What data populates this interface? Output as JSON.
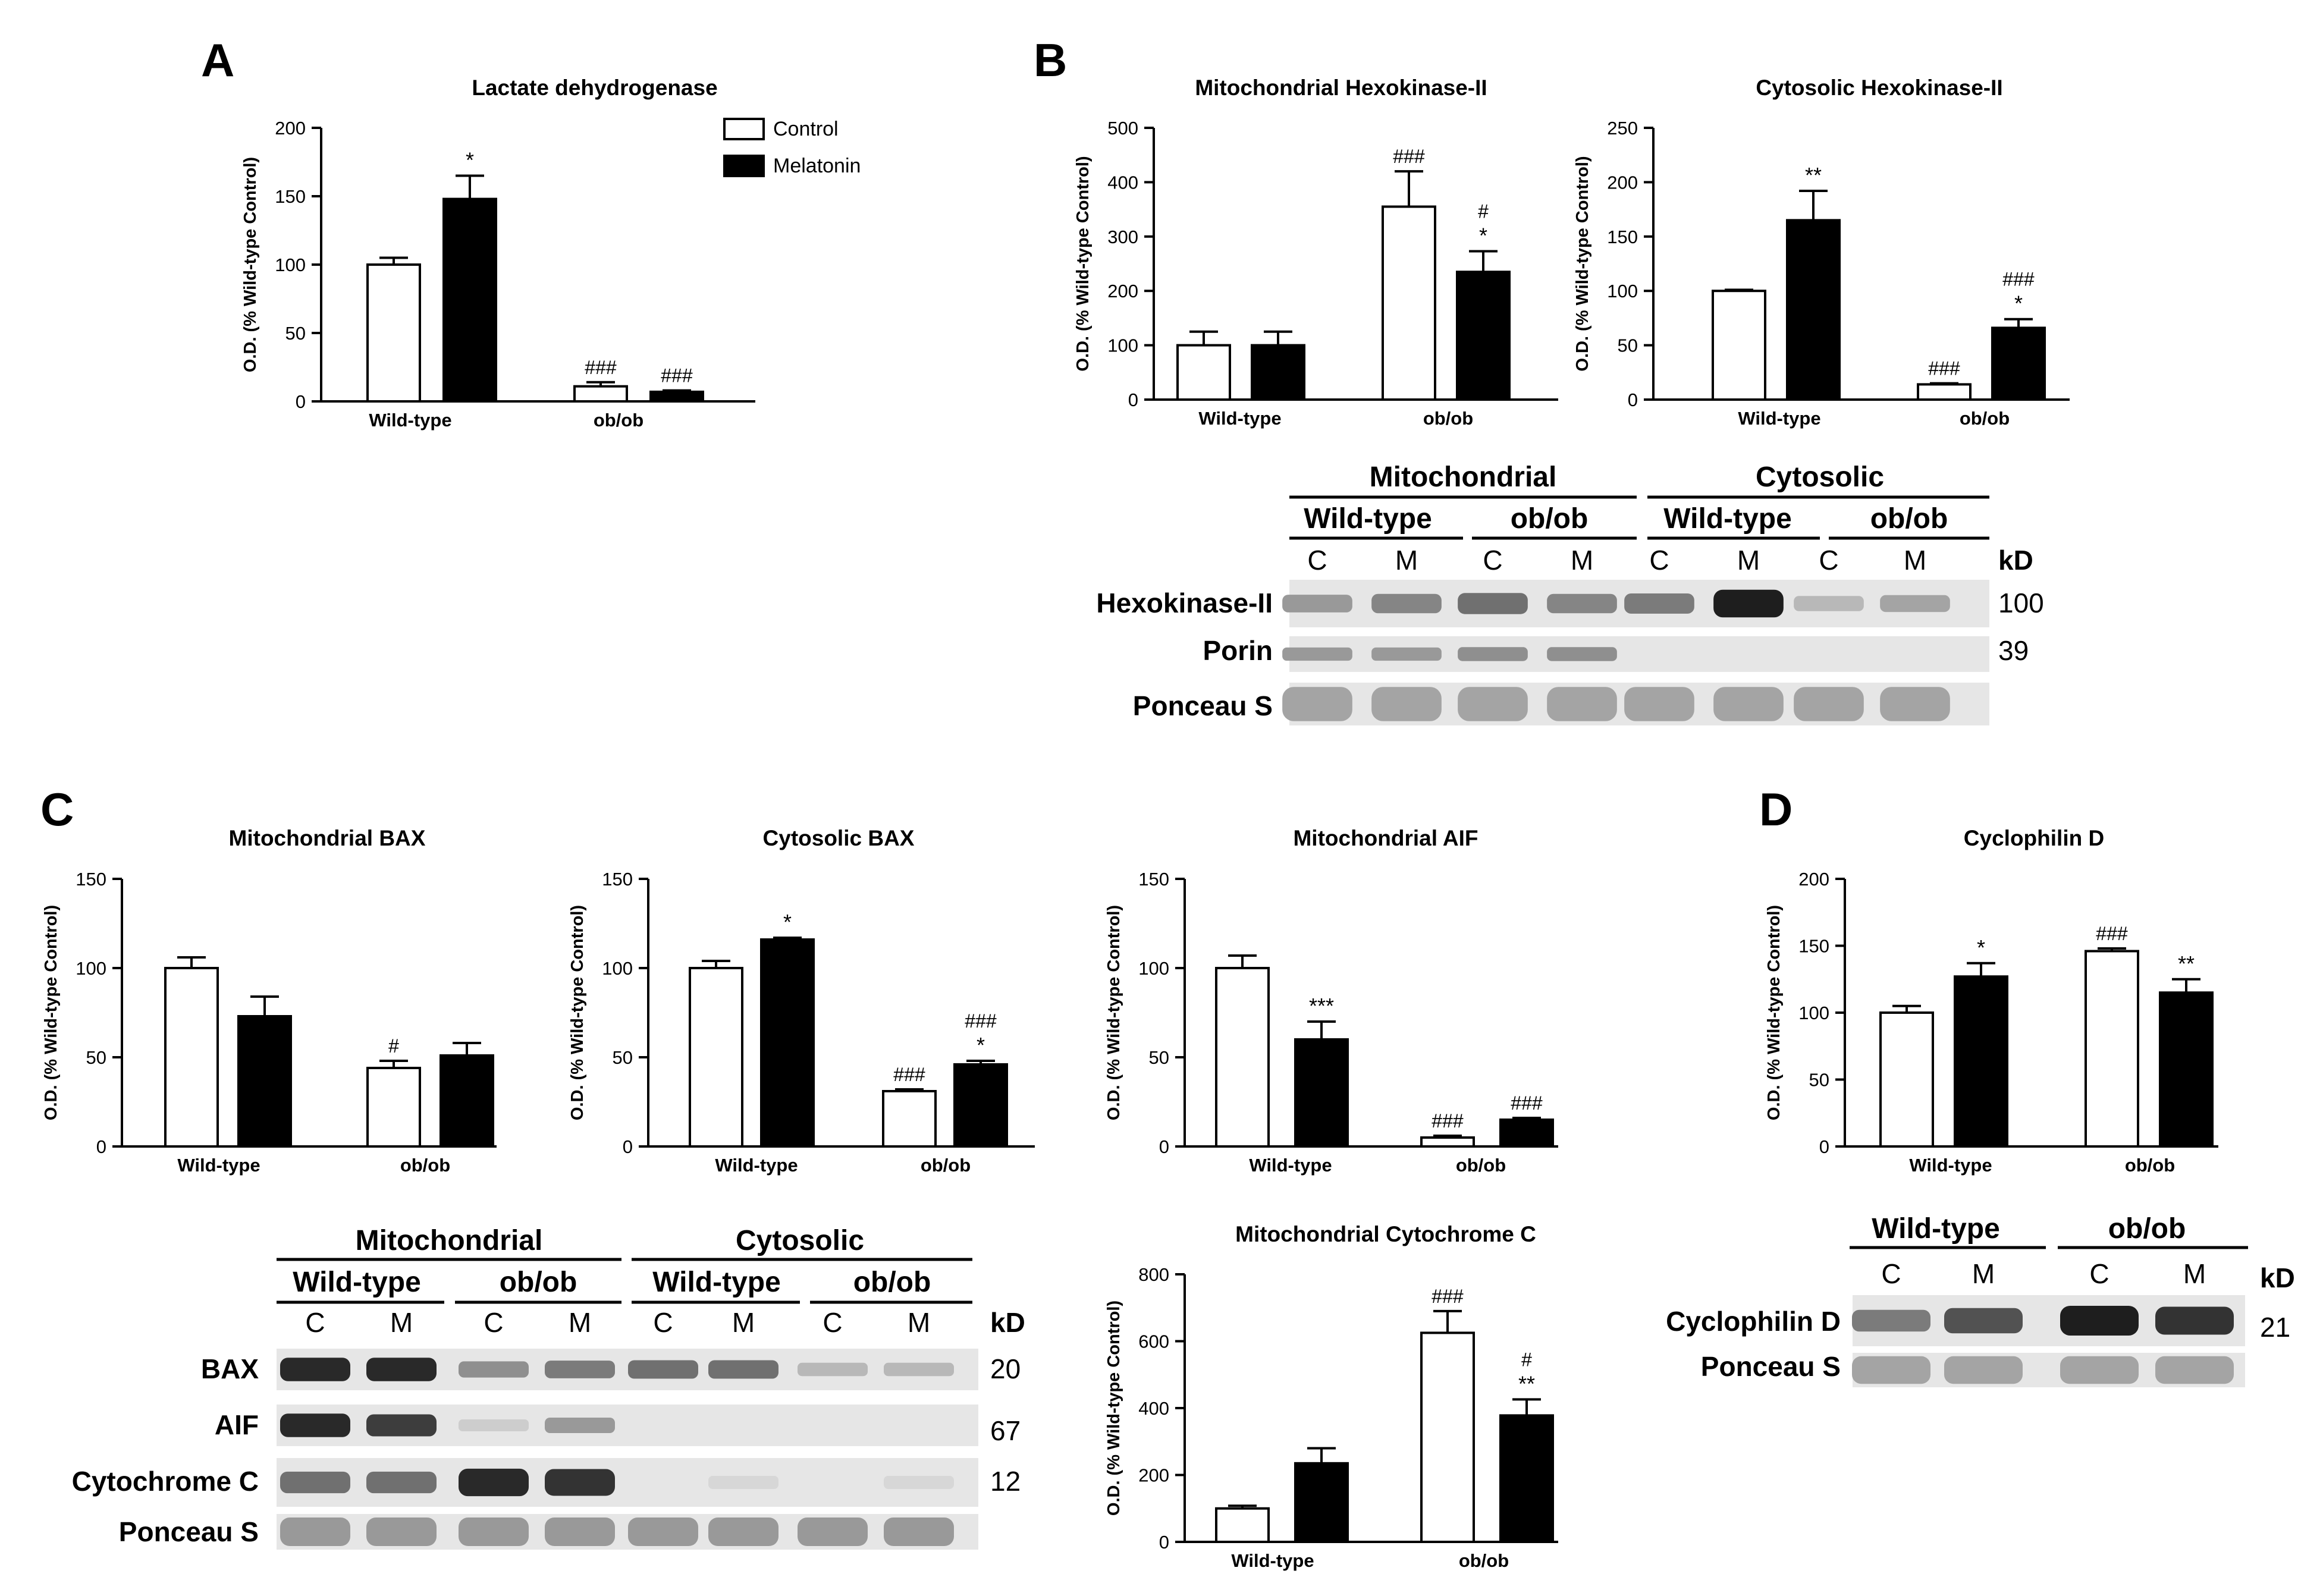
{
  "panel_letters": [
    "A",
    "B",
    "C",
    "D"
  ],
  "legend": {
    "items": [
      {
        "label": "Control",
        "fill": "#ffffff"
      },
      {
        "label": "Melatonin",
        "fill": "#000000"
      }
    ]
  },
  "colors": {
    "control": "#ffffff",
    "melatonin": "#000000",
    "axis": "#000000"
  },
  "chart_data": [
    {
      "id": "ldh",
      "type": "bar",
      "title": "Lactate dehydrogenase",
      "ylabel": "O.D. (% Wild-type Control)",
      "ylim": [
        0,
        200
      ],
      "yticks": [
        "0",
        "50",
        "100",
        "150",
        "200"
      ],
      "categories": [
        "Wild-type",
        "ob/ob"
      ],
      "series": [
        {
          "name": "Control",
          "values": [
            100,
            11
          ],
          "errors": [
            5,
            3
          ],
          "annotations": [
            "",
            "###"
          ]
        },
        {
          "name": "Melatonin",
          "values": [
            148,
            7
          ],
          "errors": [
            17,
            1
          ],
          "annotations": [
            "*",
            "###"
          ]
        }
      ]
    },
    {
      "id": "mito-hk2",
      "type": "bar",
      "title": "Mitochondrial Hexokinase-II",
      "ylabel": "O.D. (% Wild-type Control)",
      "ylim": [
        0,
        500
      ],
      "yticks": [
        "0",
        "100",
        "200",
        "300",
        "400",
        "500"
      ],
      "categories": [
        "Wild-type",
        "ob/ob"
      ],
      "series": [
        {
          "name": "Control",
          "values": [
            100,
            355
          ],
          "errors": [
            25,
            65
          ],
          "annotations": [
            "",
            "###"
          ]
        },
        {
          "name": "Melatonin",
          "values": [
            100,
            235
          ],
          "errors": [
            25,
            38
          ],
          "annotations": [
            "",
            "#\n*"
          ]
        }
      ]
    },
    {
      "id": "cyto-hk2",
      "type": "bar",
      "title": "Cytosolic Hexokinase-II",
      "ylabel": "O.D. (% Wild-type Control)",
      "ylim": [
        0,
        250
      ],
      "yticks": [
        "0",
        "50",
        "100",
        "150",
        "200",
        "250"
      ],
      "categories": [
        "Wild-type",
        "ob/ob"
      ],
      "series": [
        {
          "name": "Control",
          "values": [
            100,
            14
          ],
          "errors": [
            1,
            1
          ],
          "annotations": [
            "",
            "###"
          ]
        },
        {
          "name": "Melatonin",
          "values": [
            165,
            66
          ],
          "errors": [
            27,
            8
          ],
          "annotations": [
            "**",
            "###\n*"
          ]
        }
      ]
    },
    {
      "id": "mito-bax",
      "type": "bar",
      "title": "Mitochondrial BAX",
      "ylabel": "O.D. (% Wild-type Control)",
      "ylim": [
        0,
        150
      ],
      "yticks": [
        "0",
        "50",
        "100",
        "150"
      ],
      "categories": [
        "Wild-type",
        "ob/ob"
      ],
      "series": [
        {
          "name": "Control",
          "values": [
            100,
            44
          ],
          "errors": [
            6,
            4
          ],
          "annotations": [
            "",
            "#"
          ]
        },
        {
          "name": "Melatonin",
          "values": [
            73,
            51
          ],
          "errors": [
            11,
            7
          ],
          "annotations": [
            "",
            ""
          ]
        }
      ]
    },
    {
      "id": "cyto-bax",
      "type": "bar",
      "title": "Cytosolic BAX",
      "ylabel": "O.D. (% Wild-type Control)",
      "ylim": [
        0,
        150
      ],
      "yticks": [
        "0",
        "50",
        "100",
        "150"
      ],
      "categories": [
        "Wild-type",
        "ob/ob"
      ],
      "series": [
        {
          "name": "Control",
          "values": [
            100,
            31
          ],
          "errors": [
            4,
            1
          ],
          "annotations": [
            "",
            "###"
          ]
        },
        {
          "name": "Melatonin",
          "values": [
            116,
            46
          ],
          "errors": [
            1,
            2
          ],
          "annotations": [
            "*",
            "###\n*"
          ]
        }
      ]
    },
    {
      "id": "mito-aif",
      "type": "bar",
      "title": "Mitochondrial AIF",
      "ylabel": "O.D. (% Wild-type Control)",
      "ylim": [
        0,
        150
      ],
      "yticks": [
        "0",
        "50",
        "100",
        "150"
      ],
      "categories": [
        "Wild-type",
        "ob/ob"
      ],
      "series": [
        {
          "name": "Control",
          "values": [
            100,
            5
          ],
          "errors": [
            7,
            1
          ],
          "annotations": [
            "",
            "###"
          ]
        },
        {
          "name": "Melatonin",
          "values": [
            60,
            15
          ],
          "errors": [
            10,
            1
          ],
          "annotations": [
            "***",
            "###"
          ]
        }
      ]
    },
    {
      "id": "cyclophilin",
      "type": "bar",
      "title": "Cyclophilin D",
      "ylabel": "O.D. (% Wild-type Control)",
      "ylim": [
        0,
        200
      ],
      "yticks": [
        "0",
        "50",
        "100",
        "150",
        "200"
      ],
      "categories": [
        "Wild-type",
        "ob/ob"
      ],
      "series": [
        {
          "name": "Control",
          "values": [
            100,
            146
          ],
          "errors": [
            5,
            2
          ],
          "annotations": [
            "",
            "###"
          ]
        },
        {
          "name": "Melatonin",
          "values": [
            127,
            115
          ],
          "errors": [
            10,
            10
          ],
          "annotations": [
            "*",
            "**"
          ]
        }
      ]
    },
    {
      "id": "mito-cytc",
      "type": "bar",
      "title": "Mitochondrial Cytochrome C",
      "ylabel": "O.D. (% Wild-type Control)",
      "ylim": [
        0,
        800
      ],
      "yticks": [
        "0",
        "200",
        "400",
        "600",
        "800"
      ],
      "categories": [
        "Wild-type",
        "ob/ob"
      ],
      "series": [
        {
          "name": "Control",
          "values": [
            100,
            625
          ],
          "errors": [
            8,
            65
          ],
          "annotations": [
            "",
            "###"
          ]
        },
        {
          "name": "Melatonin",
          "values": [
            235,
            378
          ],
          "errors": [
            45,
            48
          ],
          "annotations": [
            "",
            "#\n**"
          ]
        }
      ]
    }
  ],
  "blots": [
    {
      "id": "blot-b",
      "top_headers": [
        "Mitochondrial",
        "Cytosolic"
      ],
      "group_headers": [
        "Wild-type",
        "ob/ob",
        "Wild-type",
        "ob/ob"
      ],
      "lanes": [
        "C",
        "M",
        "C",
        "M",
        "C",
        "M",
        "C",
        "M"
      ],
      "kd_label": "kD",
      "rows": [
        {
          "label": "Hexokinase-II",
          "kd": "100",
          "intensity": [
            0.35,
            0.45,
            0.55,
            0.45,
            0.5,
            0.95,
            0.2,
            0.3
          ]
        },
        {
          "label": "Porin",
          "kd": "39",
          "intensity": [
            0.35,
            0.35,
            0.4,
            0.4,
            0,
            0,
            0,
            0
          ]
        },
        {
          "label": "Ponceau S",
          "kd": "",
          "intensity": [
            0.3,
            0.3,
            0.3,
            0.3,
            0.3,
            0.3,
            0.3,
            0.3
          ]
        }
      ]
    },
    {
      "id": "blot-c",
      "top_headers": [
        "Mitochondrial",
        "Cytosolic"
      ],
      "group_headers": [
        "Wild-type",
        "ob/ob",
        "Wild-type",
        "ob/ob"
      ],
      "lanes": [
        "C",
        "M",
        "C",
        "M",
        "C",
        "M",
        "C",
        "M"
      ],
      "kd_label": "kD",
      "rows": [
        {
          "label": "BAX",
          "kd": "20",
          "intensity": [
            0.9,
            0.9,
            0.4,
            0.5,
            0.55,
            0.55,
            0.2,
            0.2
          ]
        },
        {
          "label": "AIF",
          "kd": "67",
          "intensity": [
            0.9,
            0.8,
            0.1,
            0.35,
            0,
            0,
            0,
            0
          ]
        },
        {
          "label": "Cytochrome C",
          "kd": "12",
          "intensity": [
            0.55,
            0.55,
            0.9,
            0.85,
            0,
            0.05,
            0,
            0.05
          ]
        },
        {
          "label": "Ponceau S",
          "kd": "",
          "intensity": [
            0.35,
            0.35,
            0.35,
            0.35,
            0.35,
            0.35,
            0.35,
            0.35
          ]
        }
      ]
    },
    {
      "id": "blot-d",
      "top_headers": [],
      "group_headers": [
        "Wild-type",
        "ob/ob"
      ],
      "lanes": [
        "C",
        "M",
        "C",
        "M"
      ],
      "kd_label": "kD",
      "rows": [
        {
          "label": "Cyclophilin D",
          "kd": "21",
          "intensity": [
            0.5,
            0.7,
            0.95,
            0.85
          ]
        },
        {
          "label": "Ponceau S",
          "kd": "",
          "intensity": [
            0.3,
            0.3,
            0.3,
            0.3
          ]
        }
      ]
    }
  ]
}
